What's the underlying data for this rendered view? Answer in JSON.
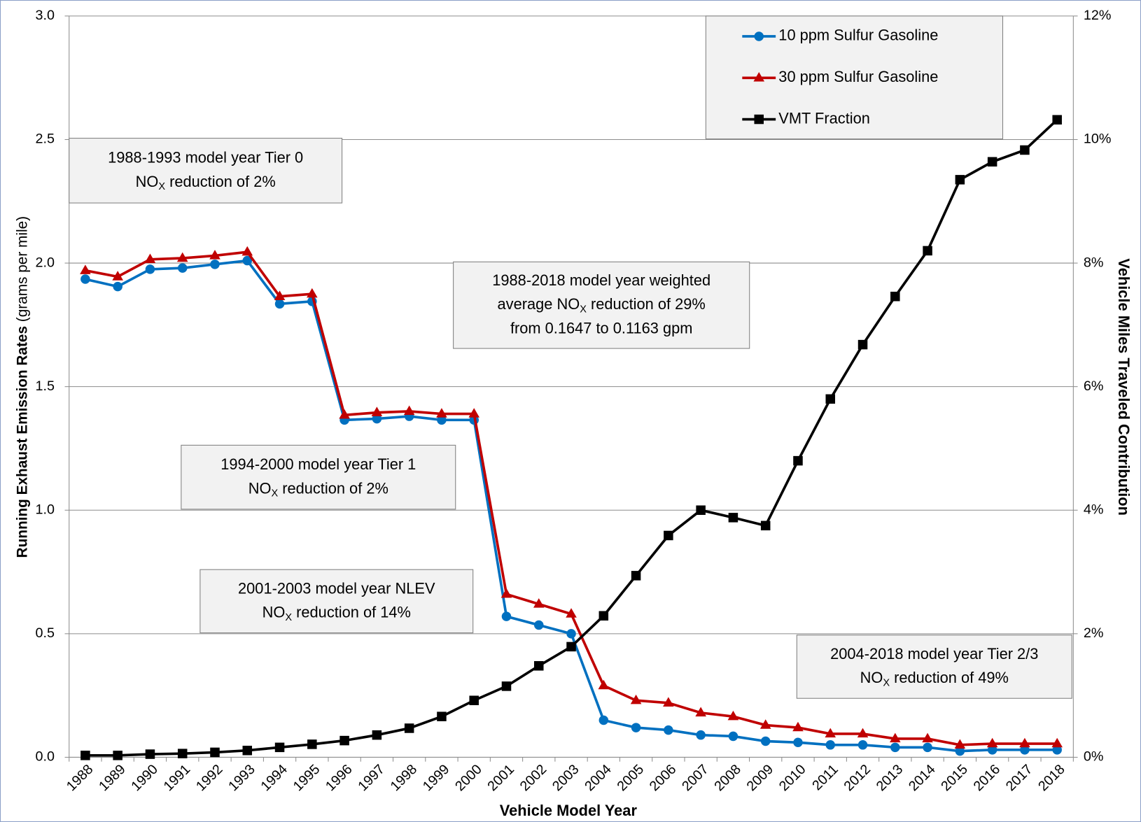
{
  "chart_data": {
    "type": "line",
    "xlabel": "Vehicle Model Year",
    "ylabel": [
      "Running Exhaust Emission Rates",
      " (grams per mile)"
    ],
    "y2label": "Vehicle Miles Traveled Contribution",
    "categories": [
      "1988",
      "1989",
      "1990",
      "1991",
      "1992",
      "1993",
      "1994",
      "1995",
      "1996",
      "1997",
      "1998",
      "1999",
      "2000",
      "2001",
      "2002",
      "2003",
      "2004",
      "2005",
      "2006",
      "2007",
      "2008",
      "2009",
      "2010",
      "2011",
      "2012",
      "2013",
      "2014",
      "2015",
      "2016",
      "2017",
      "2018"
    ],
    "series": [
      {
        "name": "10 ppm Sulfur Gasoline",
        "color": "#0070c0",
        "marker": "circle",
        "values": [
          1.935,
          1.905,
          1.975,
          1.98,
          1.995,
          2.01,
          1.835,
          1.845,
          1.365,
          1.37,
          1.38,
          1.365,
          1.365,
          0.57,
          0.535,
          0.5,
          0.15,
          0.12,
          0.11,
          0.09,
          0.085,
          0.065,
          0.06,
          0.05,
          0.05,
          0.04,
          0.04,
          0.025,
          0.03,
          0.03,
          0.03
        ]
      },
      {
        "name": "30 ppm Sulfur Gasoline",
        "color": "#c00000",
        "marker": "triangle",
        "values": [
          1.97,
          1.945,
          2.015,
          2.02,
          2.03,
          2.045,
          1.865,
          1.875,
          1.385,
          1.395,
          1.4,
          1.39,
          1.39,
          0.66,
          0.62,
          0.58,
          0.29,
          0.23,
          0.22,
          0.18,
          0.165,
          0.13,
          0.12,
          0.095,
          0.095,
          0.075,
          0.075,
          0.05,
          0.055,
          0.055,
          0.055
        ]
      },
      {
        "name": "VMT Fraction",
        "color": "#000000",
        "marker": "square",
        "axis": "y2",
        "values": [
          0.03,
          0.03,
          0.05,
          0.06,
          0.08,
          0.11,
          0.16,
          0.21,
          0.27,
          0.36,
          0.47,
          0.66,
          0.92,
          1.15,
          1.48,
          1.79,
          2.29,
          2.94,
          3.59,
          4.0,
          3.88,
          3.75,
          4.8,
          5.8,
          6.68,
          7.46,
          8.2,
          9.35,
          9.64,
          9.83,
          10.32
        ]
      }
    ],
    "ylim": [
      0,
      3
    ],
    "yticks": [
      {
        "value": 0,
        "label": "0.0"
      },
      0.5,
      {
        "value": 1,
        "label": "1.0"
      },
      1.5,
      {
        "value": 2,
        "label": "2.0"
      },
      2.5,
      {
        "value": 3,
        "label": "3.0"
      }
    ],
    "y2lim": [
      0,
      12
    ],
    "y2ticks": [
      {
        "value": 0,
        "label": "0%"
      },
      {
        "value": 2,
        "label": "2%"
      },
      {
        "value": 4,
        "label": "4%"
      },
      {
        "value": 6,
        "label": "6%"
      },
      {
        "value": 8,
        "label": "8%"
      },
      {
        "value": 10,
        "label": "10%"
      },
      {
        "value": 12,
        "label": "12%"
      }
    ],
    "grid": true,
    "legend": "top-right",
    "annotations": [
      {
        "lines": [
          [
            "1988-1993 model year Tier 0"
          ],
          [
            "NO",
            "X",
            " reduction of 2%"
          ]
        ]
      },
      {
        "lines": [
          [
            "1988-2018 model year weighted"
          ],
          [
            "average NO",
            "X",
            " reduction of 29%"
          ],
          [
            "from 0.1647 to 0.1163 gpm"
          ]
        ]
      },
      {
        "lines": [
          [
            "1994-2000 model year Tier 1"
          ],
          [
            "NO",
            "X",
            " reduction of 2%"
          ]
        ]
      },
      {
        "lines": [
          [
            "2001-2003 model year NLEV"
          ],
          [
            "NO",
            "X",
            " reduction of 14%"
          ]
        ]
      },
      {
        "lines": [
          [
            "2004-2018 model year Tier 2/3"
          ],
          [
            "NO",
            "X",
            " reduction of 49%"
          ]
        ]
      }
    ]
  }
}
